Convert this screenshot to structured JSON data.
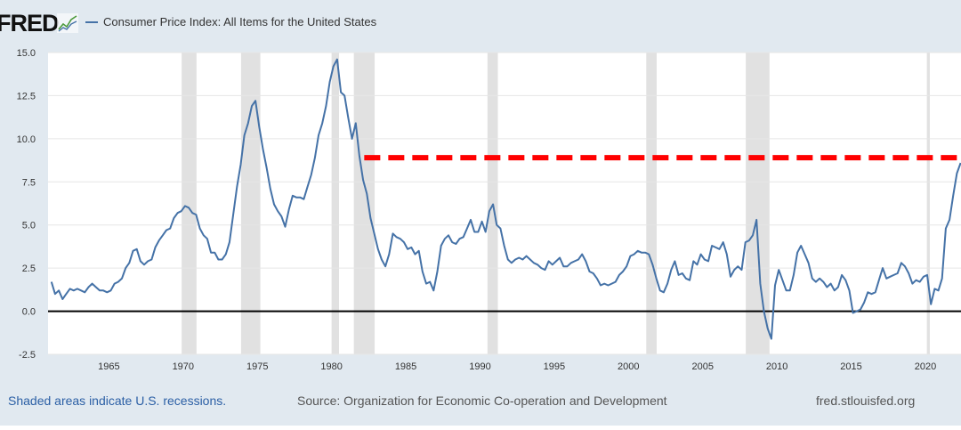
{
  "header": {
    "logo": "FRED",
    "logo_icon": "line-chart-icon",
    "legend_label": "Consumer Price Index: All Items for the United States"
  },
  "footer": {
    "recession_note": "Shaded areas indicate U.S. recessions.",
    "source": "Source: Organization for Economic Co-operation and Development",
    "site": "fred.stlouisfed.org"
  },
  "chart_data": {
    "type": "line",
    "title": "",
    "ylim": [
      -2.5,
      15.0
    ],
    "xlim": [
      1960.9,
      2022.4
    ],
    "y_ticks": [
      "15.0",
      "12.5",
      "10.0",
      "7.5",
      "5.0",
      "2.5",
      "0.0",
      "-2.5"
    ],
    "x_ticks": [
      "1965",
      "1970",
      "1975",
      "1980",
      "1985",
      "1990",
      "1995",
      "2000",
      "2005",
      "2010",
      "2015",
      "2020"
    ],
    "grid": true,
    "colors": {
      "series": "#4572a7",
      "zero_line": "#000000",
      "reference_line": "#ff0000",
      "recession": "#e1e1e1"
    },
    "recessions": [
      [
        1969.9,
        1970.9
      ],
      [
        1973.9,
        1975.2
      ],
      [
        1980.0,
        1980.5
      ],
      [
        1981.5,
        1982.9
      ],
      [
        1990.5,
        1991.2
      ],
      [
        2001.2,
        2001.9
      ],
      [
        2007.9,
        2009.5
      ],
      [
        2020.1,
        2020.3
      ]
    ],
    "reference_line": {
      "value": 8.9,
      "from": 1982.2,
      "style": "dashed"
    },
    "series": [
      {
        "name": "Consumer Price Index: All Items for the United States",
        "frequency": "quarterly",
        "values": {
          "1961": [
            1.7,
            1.0,
            1.2,
            0.7
          ],
          "1962": [
            1.0,
            1.3,
            1.2,
            1.3
          ],
          "1963": [
            1.2,
            1.1,
            1.4,
            1.6
          ],
          "1964": [
            1.4,
            1.2,
            1.2,
            1.1
          ],
          "1965": [
            1.2,
            1.6,
            1.7,
            1.9
          ],
          "1966": [
            2.5,
            2.8,
            3.5,
            3.6
          ],
          "1967": [
            2.9,
            2.7,
            2.9,
            3.0
          ],
          "1968": [
            3.7,
            4.1,
            4.4,
            4.7
          ],
          "1969": [
            4.8,
            5.4,
            5.7,
            5.8
          ],
          "1970": [
            6.1,
            6.0,
            5.7,
            5.6
          ],
          "1971": [
            4.8,
            4.4,
            4.2,
            3.4
          ],
          "1972": [
            3.4,
            3.0,
            3.0,
            3.3
          ],
          "1973": [
            4.0,
            5.6,
            7.2,
            8.5
          ],
          "1974": [
            10.2,
            10.9,
            11.9,
            12.2
          ],
          "1975": [
            10.7,
            9.4,
            8.3,
            7.1
          ],
          "1976": [
            6.2,
            5.8,
            5.5,
            4.9
          ],
          "1977": [
            5.9,
            6.7,
            6.6,
            6.6
          ],
          "1978": [
            6.5,
            7.2,
            7.9,
            8.9
          ],
          "1979": [
            10.2,
            10.9,
            11.9,
            13.3
          ],
          "1980": [
            14.2,
            14.6,
            12.7,
            12.5
          ],
          "1981": [
            11.2,
            10.0,
            10.9,
            9.0
          ],
          "1982": [
            7.6,
            6.8,
            5.4,
            4.5
          ],
          "1983": [
            3.6,
            3.0,
            2.6,
            3.3
          ],
          "1984": [
            4.5,
            4.3,
            4.2,
            4.0
          ],
          "1985": [
            3.6,
            3.7,
            3.3,
            3.5
          ],
          "1986": [
            2.3,
            1.6,
            1.7,
            1.2
          ],
          "1987": [
            2.3,
            3.8,
            4.2,
            4.4
          ],
          "1988": [
            4.0,
            3.9,
            4.2,
            4.3
          ],
          "1989": [
            4.8,
            5.3,
            4.6,
            4.6
          ],
          "1990": [
            5.2,
            4.6,
            5.8,
            6.2
          ],
          "1991": [
            5.0,
            4.8,
            3.8,
            3.0
          ],
          "1992": [
            2.8,
            3.0,
            3.1,
            3.0
          ],
          "1993": [
            3.2,
            3.0,
            2.8,
            2.7
          ],
          "1994": [
            2.5,
            2.4,
            2.9,
            2.7
          ],
          "1995": [
            2.9,
            3.1,
            2.6,
            2.6
          ],
          "1996": [
            2.8,
            2.9,
            3.0,
            3.3
          ],
          "1997": [
            2.9,
            2.3,
            2.2,
            1.9
          ],
          "1998": [
            1.5,
            1.6,
            1.5,
            1.6
          ],
          "1999": [
            1.7,
            2.1,
            2.3,
            2.6
          ],
          "2000": [
            3.2,
            3.3,
            3.5,
            3.4
          ],
          "2001": [
            3.4,
            3.3,
            2.7,
            1.9
          ],
          "2002": [
            1.2,
            1.1,
            1.6,
            2.4
          ],
          "2003": [
            2.9,
            2.1,
            2.2,
            1.9
          ],
          "2004": [
            1.8,
            2.9,
            2.7,
            3.3
          ],
          "2005": [
            3.0,
            2.9,
            3.8,
            3.7
          ],
          "2006": [
            3.6,
            4.0,
            3.3,
            2.0
          ],
          "2007": [
            2.4,
            2.6,
            2.4,
            4.0
          ],
          "2008": [
            4.1,
            4.4,
            5.3,
            1.6
          ],
          "2009": [
            0.0,
            -1.0,
            -1.6,
            1.5
          ],
          "2010": [
            2.4,
            1.8,
            1.2,
            1.2
          ],
          "2011": [
            2.1,
            3.4,
            3.8,
            3.3
          ],
          "2012": [
            2.8,
            1.9,
            1.7,
            1.9
          ],
          "2013": [
            1.7,
            1.4,
            1.6,
            1.2
          ],
          "2014": [
            1.4,
            2.1,
            1.8,
            1.2
          ],
          "2015": [
            -0.1,
            0.0,
            0.1,
            0.5
          ],
          "2016": [
            1.1,
            1.0,
            1.1,
            1.8
          ],
          "2017": [
            2.5,
            1.9,
            2.0,
            2.1
          ],
          "2018": [
            2.2,
            2.8,
            2.6,
            2.2
          ],
          "2019": [
            1.6,
            1.8,
            1.7,
            2.0
          ],
          "2020": [
            2.1,
            0.4,
            1.3,
            1.2
          ],
          "2021": [
            1.9,
            4.8,
            5.3,
            6.7
          ],
          "2022": [
            8.0,
            8.6
          ]
        }
      }
    ]
  }
}
